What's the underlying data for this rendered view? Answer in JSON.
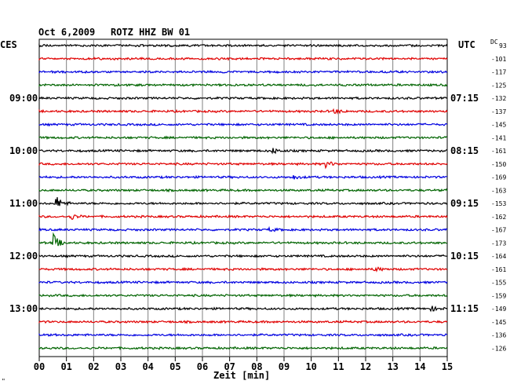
{
  "header": {
    "date": "Oct 6,2009",
    "station": "ROTZ HHZ BW 01",
    "left_zone": "CES",
    "right_zone": "UTC",
    "dc_label": "DC",
    "dc_first": "93"
  },
  "colors": {
    "black": "#000000",
    "red": "#e00000",
    "blue": "#0000e0",
    "green": "#006400",
    "grid": "#808080"
  },
  "left_times": [
    "09:00",
    "10:00",
    "11:00",
    "12:00",
    "13:00"
  ],
  "right_times": [
    "07:15",
    "08:15",
    "09:15",
    "10:15",
    "11:15"
  ],
  "dc_values": [
    "-101",
    "-117",
    "-125",
    "-132",
    "-137",
    "-145",
    "-141",
    "-161",
    "-150",
    "-169",
    "-163",
    "-153",
    "-162",
    "-167",
    "-173",
    "-164",
    "-161",
    "-155",
    "-159",
    "-149",
    "-145",
    "-136",
    "-126"
  ],
  "x_ticks": [
    "00",
    "01",
    "02",
    "03",
    "04",
    "05",
    "06",
    "07",
    "08",
    "09",
    "10",
    "11",
    "12",
    "13",
    "14",
    "15"
  ],
  "x_label": "Zeit [min]",
  "corner_mark": "\""
}
